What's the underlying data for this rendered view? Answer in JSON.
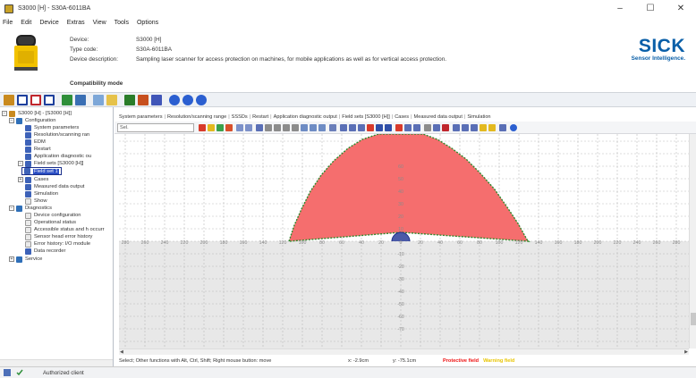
{
  "window": {
    "title": "S3000 [H] - S30A-6011BA",
    "minimize": "–",
    "maximize": "☐",
    "close": "✕"
  },
  "menu": [
    "File",
    "Edit",
    "Device",
    "Extras",
    "View",
    "Tools",
    "Options"
  ],
  "device": {
    "device_label": "Device:",
    "device_value": "S3000 [H]",
    "type_label": "Type code:",
    "type_value": "S30A-6011BA",
    "desc_label": "Device description:",
    "desc_value": "Sampling laser scanner for access protection on machines, for mobile applications as well as for vertical access protection.",
    "compat": "Compatibility mode"
  },
  "logo": {
    "main": "SICK",
    "sub": "Sensor Intelligence."
  },
  "tree": {
    "items": [
      "S3000 [H] - [S3000 [H]]",
      "Configuration",
      "System parameters",
      "Resolution/scanning ran",
      "EDM",
      "Restart",
      "Application diagnostic ou",
      "Field sets [S3000 [H]]",
      "Field set 1",
      "Cases",
      "Measured data output",
      "Simulation",
      "Show",
      "Diagnostics",
      "Device configuration",
      "Operational status",
      "Accessible status and h occurr",
      "Sensor head error history",
      "Error history: I/O module",
      "Data recorder",
      "Service"
    ]
  },
  "tabs": [
    "System parameters",
    "Resolution/scanning range",
    "SSSDs",
    "Restart",
    "Application diagnostic output",
    "Field sets [S3000 [H]]",
    "Cases",
    "Measured data output",
    "Simulation"
  ],
  "editor": {
    "select_value": "Sel."
  },
  "grid": {
    "x_labels": [
      "280",
      "260",
      "240",
      "220",
      "200",
      "180",
      "160",
      "140",
      "120",
      "100",
      "80",
      "60",
      "40",
      "20",
      "0",
      "20",
      "40",
      "60",
      "80",
      "100",
      "120",
      "140",
      "160",
      "180",
      "200",
      "220",
      "240",
      "260",
      "280"
    ],
    "y_labels_up": [
      "10",
      "20",
      "30",
      "40",
      "50",
      "60"
    ],
    "y_labels_down": [
      "-10",
      "-20",
      "-30",
      "-40",
      "-50",
      "-60",
      "-70"
    ],
    "field_color": "#f56e6e",
    "outline_color": "#2e8b2e"
  },
  "status": {
    "hint": "Select; Other functions with Alt, Ctrl, Shift; Right mouse button: move",
    "x": "x: -2.9cm",
    "y": "y: -75.1cm",
    "protective": "Protective field",
    "warning": "Warning field"
  },
  "footer": {
    "user": "Authorized client"
  }
}
